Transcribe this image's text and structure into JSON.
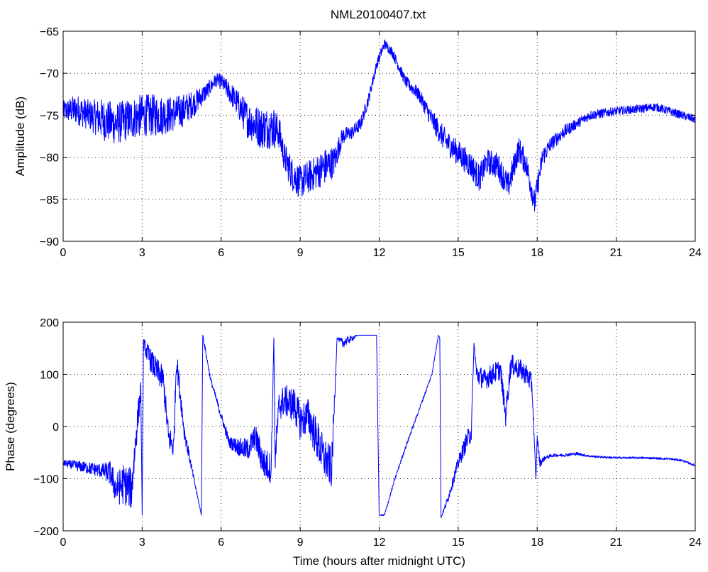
{
  "figure": {
    "title": "NML20100407.txt"
  },
  "chart_data": [
    {
      "type": "line",
      "title": "NML20100407.txt",
      "xlabel": "",
      "ylabel": "Amplitude (dB)",
      "xlim": [
        0,
        24
      ],
      "ylim": [
        -90,
        -65
      ],
      "xticks": [
        0,
        3,
        6,
        9,
        12,
        15,
        18,
        21,
        24
      ],
      "yticks": [
        -90,
        -85,
        -80,
        -75,
        -70,
        -65
      ],
      "grid": true,
      "series": [
        {
          "color": "#0000ff",
          "x": [
            0,
            0.5,
            1,
            1.5,
            2,
            2.5,
            3,
            3.5,
            4,
            4.5,
            5,
            5.5,
            5.8,
            6,
            6.5,
            7,
            7.5,
            8,
            8.2,
            8.4,
            8.7,
            9,
            9.5,
            10,
            10.3,
            10.6,
            11,
            11.3,
            11.6,
            11.9,
            12.2,
            12.5,
            13,
            13.5,
            14,
            14.5,
            15,
            15.5,
            15.8,
            16.1,
            16.5,
            16.9,
            17.3,
            17.6,
            17.9,
            18.2,
            18.5,
            19,
            19.5,
            20,
            21,
            22,
            22.5,
            23,
            23.5,
            24
          ],
          "y": [
            -74.5,
            -74.3,
            -75,
            -75.5,
            -76,
            -75.5,
            -75,
            -75,
            -75,
            -74.5,
            -73.5,
            -72,
            -70.8,
            -71,
            -73,
            -75.5,
            -76.5,
            -76.5,
            -77,
            -80,
            -82,
            -83,
            -82,
            -81,
            -80.5,
            -77.5,
            -77,
            -76,
            -73,
            -69,
            -66.5,
            -67.5,
            -71,
            -72.5,
            -75.5,
            -78,
            -79.5,
            -81,
            -82.5,
            -80.5,
            -81,
            -83.5,
            -79,
            -81,
            -85.5,
            -80,
            -78.5,
            -77,
            -76,
            -75,
            -74.5,
            -74.2,
            -74,
            -74.5,
            -75,
            -75.5
          ],
          "noise": [
            1.2,
            1.8,
            1.8,
            2.5,
            2.5,
            2.5,
            2.5,
            2.5,
            2.2,
            2.0,
            1.5,
            1.0,
            0.8,
            0.9,
            1.5,
            2.2,
            2.5,
            2.5,
            2.0,
            1.8,
            2.0,
            2.0,
            2.0,
            2.2,
            1.8,
            1.0,
            0.8,
            0.8,
            0.7,
            0.6,
            0.6,
            0.6,
            0.7,
            0.8,
            1.2,
            1.5,
            1.5,
            1.6,
            1.6,
            1.5,
            1.6,
            1.6,
            1.5,
            1.5,
            1.5,
            1.2,
            0.9,
            0.8,
            0.6,
            0.6,
            0.5,
            0.5,
            0.5,
            0.5,
            0.5,
            0.5
          ]
        }
      ]
    },
    {
      "type": "line",
      "title": "",
      "xlabel": "Time (hours after midnight UTC)",
      "ylabel": "Phase (degrees)",
      "xlim": [
        0,
        24
      ],
      "ylim": [
        -200,
        200
      ],
      "xticks": [
        0,
        3,
        6,
        9,
        12,
        15,
        18,
        21,
        24
      ],
      "yticks": [
        -200,
        -100,
        0,
        100,
        200
      ],
      "grid": true,
      "series": [
        {
          "color": "#0000ff",
          "x": [
            0,
            0.5,
            1,
            1.5,
            1.8,
            2.0,
            2.3,
            2.6,
            2.8,
            2.95,
            3.0,
            3.05,
            3.2,
            3.5,
            3.8,
            4.0,
            4.2,
            4.3,
            4.6,
            5.0,
            5.25,
            5.3,
            5.32,
            5.6,
            6.0,
            6.3,
            6.7,
            7.0,
            7.3,
            7.6,
            7.9,
            8.0,
            8.05,
            8.2,
            8.4,
            8.8,
            9.0,
            9.3,
            9.6,
            9.9,
            10.2,
            10.4,
            10.6,
            11.0,
            11.2,
            11.4,
            11.6,
            11.9,
            12.0,
            12.2,
            12.6,
            13.0,
            13.5,
            14.0,
            14.25,
            14.3,
            14.35,
            14.6,
            15.0,
            15.3,
            15.5,
            15.6,
            15.7,
            16.0,
            16.3,
            16.6,
            16.8,
            17.0,
            17.3,
            17.6,
            17.8,
            17.95,
            18.0,
            18.1,
            18.3,
            18.6,
            19.0,
            19.5,
            20.0,
            21.0,
            22.0,
            23.0,
            23.5,
            24.0
          ],
          "y": [
            -70,
            -75,
            -80,
            -85,
            -90,
            -120,
            -110,
            -120,
            0,
            70,
            -170,
            160,
            140,
            110,
            90,
            -20,
            -40,
            130,
            -10,
            -110,
            -170,
            175,
            170,
            90,
            20,
            -30,
            -40,
            -45,
            -20,
            -70,
            -80,
            170,
            -60,
            40,
            50,
            40,
            10,
            20,
            -20,
            -60,
            -80,
            170,
            160,
            170,
            175,
            175,
            175,
            175,
            -170,
            -170,
            -100,
            -40,
            30,
            100,
            175,
            170,
            -175,
            -140,
            -70,
            -30,
            -10,
            160,
            100,
            90,
            100,
            110,
            20,
            120,
            110,
            100,
            80,
            -100,
            -20,
            -70,
            -60,
            -55,
            -55,
            -52,
            -57,
            -60,
            -60,
            -62,
            -65,
            -75
          ],
          "noise": [
            6,
            10,
            12,
            14,
            25,
            30,
            40,
            40,
            30,
            20,
            0,
            10,
            20,
            25,
            25,
            25,
            25,
            25,
            15,
            5,
            0,
            0,
            5,
            5,
            8,
            10,
            18,
            22,
            25,
            30,
            30,
            0,
            30,
            30,
            30,
            35,
            35,
            35,
            40,
            40,
            40,
            0,
            10,
            5,
            0,
            0,
            0,
            0,
            0,
            3,
            3,
            3,
            3,
            3,
            0,
            0,
            0,
            8,
            12,
            18,
            20,
            0,
            20,
            20,
            20,
            20,
            20,
            20,
            20,
            20,
            20,
            0,
            10,
            8,
            4,
            3,
            3,
            3,
            2,
            2,
            2,
            2,
            2,
            2
          ]
        }
      ]
    }
  ]
}
